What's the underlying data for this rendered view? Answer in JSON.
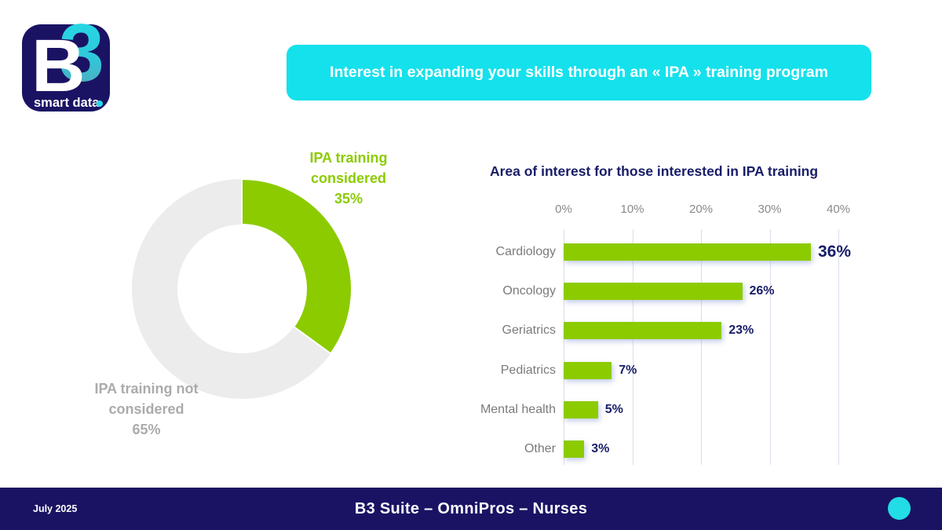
{
  "logo": {
    "letter_b": "B",
    "digit": "3",
    "tagline": "smart data",
    "tagline_dot": "."
  },
  "title_banner": {
    "text": "Interest in expanding your skills through an « IPA » training program"
  },
  "colors": {
    "green": "#8ccb00",
    "cyan": "#14e1ec",
    "navy": "#1a1364",
    "text_navy": "#181d68",
    "donut_gray": "#ececec",
    "donut_gray_label": "#ababab",
    "category_gray": "#7b7b7b",
    "grid_gray": "#dadded"
  },
  "chart_data": [
    {
      "type": "pie",
      "subtype": "donut",
      "labels": [
        "IPA training considered",
        "IPA training not considered"
      ],
      "values": [
        35,
        65
      ],
      "value_labels": [
        "35%",
        "65%"
      ],
      "colors": [
        "#8ccb00",
        "#ececec"
      ],
      "start_angle_deg": 0,
      "direction": "clockwise",
      "legend_position": "outside-labels"
    },
    {
      "type": "bar",
      "orientation": "horizontal",
      "title": "Area of interest for those interested in IPA training",
      "categories": [
        "Cardiology",
        "Oncology",
        "Geriatrics",
        "Pediatrics",
        "Mental health",
        "Other"
      ],
      "values": [
        36,
        26,
        23,
        7,
        5,
        3
      ],
      "value_labels": [
        "36%",
        "26%",
        "23%",
        "7%",
        "5%",
        "3%"
      ],
      "x_ticks": [
        "0%",
        "10%",
        "20%",
        "30%",
        "40%"
      ],
      "xlim": [
        0,
        40
      ],
      "grid": true,
      "bar_color": "#8ccb00",
      "value_label_color": "#181d68"
    }
  ],
  "footer": {
    "date": "July 2025",
    "title": "B3 Suite – OmniPros – Nurses"
  }
}
